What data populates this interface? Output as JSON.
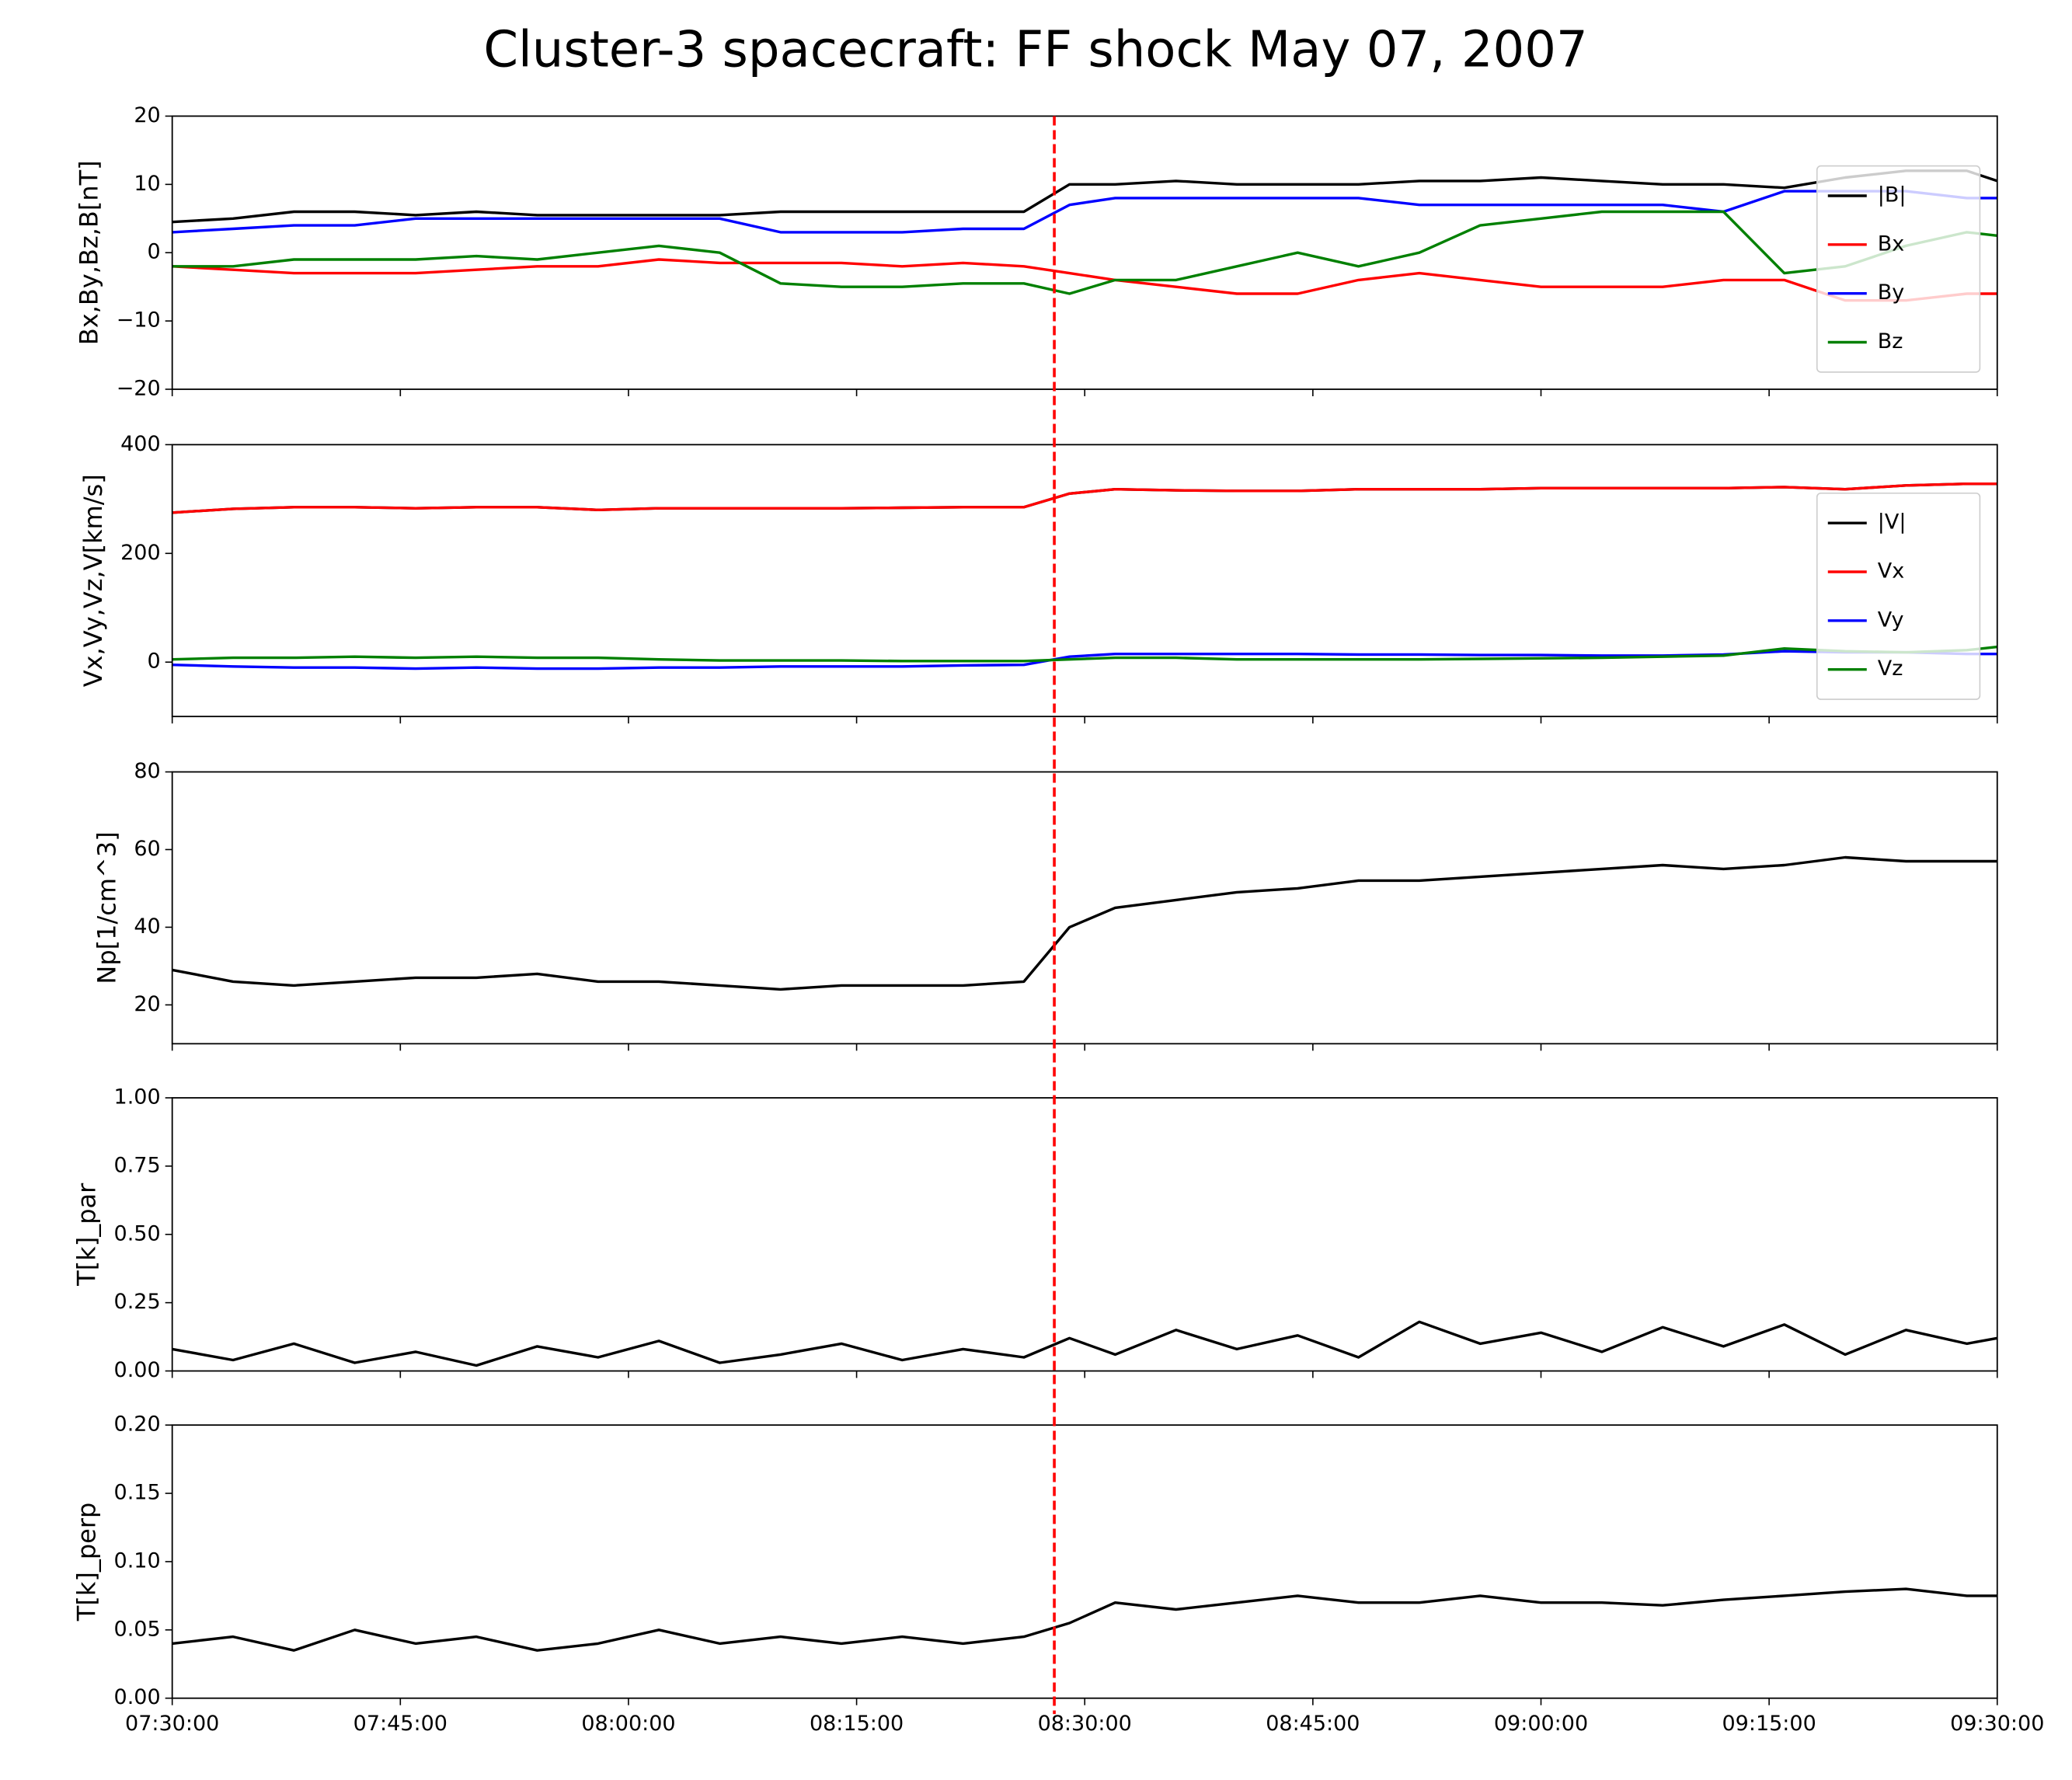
{
  "title": "Cluster-3 spacecraft: FF shock May 07, 2007",
  "vline": {
    "x": "08:28:00",
    "color": "#ff0000"
  },
  "chart_data": [
    {
      "type": "line",
      "ylabel": "Bx,By,Bz,B[nT]",
      "legend": "lower right",
      "x": [
        "07:30:00",
        "07:34:00",
        "07:38:00",
        "07:42:00",
        "07:46:00",
        "07:50:00",
        "07:54:00",
        "07:58:00",
        "08:02:00",
        "08:06:00",
        "08:10:00",
        "08:14:00",
        "08:18:00",
        "08:22:00",
        "08:26:00",
        "08:29:00",
        "08:32:00",
        "08:36:00",
        "08:40:00",
        "08:44:00",
        "08:48:00",
        "08:52:00",
        "08:56:00",
        "09:00:00",
        "09:04:00",
        "09:08:00",
        "09:12:00",
        "09:16:00",
        "09:20:00",
        "09:24:00",
        "09:28:00",
        "09:30:00"
      ],
      "xlim": [
        "07:30:00",
        "09:30:00"
      ],
      "ylim": [
        -20,
        20
      ],
      "yticks": [
        {
          "value": -20,
          "label": "−20"
        },
        {
          "value": -10,
          "label": "−10"
        },
        0,
        10,
        20
      ],
      "series": [
        {
          "name": "|B|",
          "color": "#000000",
          "values": [
            4.5,
            5,
            6,
            6,
            5.5,
            6,
            5.5,
            5.5,
            5.5,
            5.5,
            6,
            6,
            6,
            6,
            6,
            10,
            10,
            10.5,
            10,
            10,
            10,
            10.5,
            10.5,
            11,
            10.5,
            10,
            10,
            9.5,
            11,
            12,
            12,
            10.5
          ]
        },
        {
          "name": "Bx",
          "color": "#ff0000",
          "values": [
            -2,
            -2.5,
            -3,
            -3,
            -3,
            -2.5,
            -2,
            -2,
            -1,
            -1.5,
            -1.5,
            -1.5,
            -2,
            -1.5,
            -2,
            -3,
            -4,
            -5,
            -6,
            -6,
            -4,
            -3,
            -4,
            -5,
            -5,
            -5,
            -4,
            -4,
            -7,
            -7,
            -6,
            -6
          ]
        },
        {
          "name": "By",
          "color": "#0000ff",
          "values": [
            3,
            3.5,
            4,
            4,
            5,
            5,
            5,
            5,
            5,
            5,
            3,
            3,
            3,
            3.5,
            3.5,
            7,
            8,
            8,
            8,
            8,
            8,
            7,
            7,
            7,
            7,
            7,
            6,
            9,
            9,
            9,
            8,
            8
          ]
        },
        {
          "name": "Bz",
          "color": "#008000",
          "values": [
            -2,
            -2,
            -1,
            -1,
            -1,
            -0.5,
            -1,
            0,
            1,
            0,
            -4.5,
            -5,
            -5,
            -4.5,
            -4.5,
            -6,
            -4,
            -4,
            -2,
            0,
            -2,
            0,
            4,
            5,
            6,
            6,
            6,
            -3,
            -2,
            1,
            3,
            2.5
          ]
        }
      ]
    },
    {
      "type": "line",
      "ylabel": "Vx,Vy,Vz,V[km/s]",
      "legend": "lower right",
      "x": [
        "07:30:00",
        "07:34:00",
        "07:38:00",
        "07:42:00",
        "07:46:00",
        "07:50:00",
        "07:54:00",
        "07:58:00",
        "08:02:00",
        "08:06:00",
        "08:10:00",
        "08:14:00",
        "08:18:00",
        "08:22:00",
        "08:26:00",
        "08:29:00",
        "08:32:00",
        "08:36:00",
        "08:40:00",
        "08:44:00",
        "08:48:00",
        "08:52:00",
        "08:56:00",
        "09:00:00",
        "09:04:00",
        "09:08:00",
        "09:12:00",
        "09:16:00",
        "09:20:00",
        "09:24:00",
        "09:28:00",
        "09:30:00"
      ],
      "xlim": [
        "07:30:00",
        "09:30:00"
      ],
      "ylim": [
        -100,
        400
      ],
      "yticks": [
        0,
        200,
        400
      ],
      "series": [
        {
          "name": "|V|",
          "color": "#000000",
          "values": [
            275,
            282,
            285,
            285,
            283,
            285,
            285,
            280,
            283,
            283,
            283,
            283,
            284,
            285,
            285,
            310,
            318,
            316,
            315,
            315,
            318,
            318,
            318,
            320,
            320,
            320,
            320,
            322,
            318,
            325,
            328,
            328
          ]
        },
        {
          "name": "Vx",
          "color": "#ff0000",
          "values": [
            275,
            282,
            285,
            285,
            283,
            285,
            285,
            280,
            283,
            283,
            283,
            283,
            284,
            285,
            285,
            310,
            318,
            316,
            315,
            315,
            318,
            318,
            318,
            320,
            320,
            320,
            320,
            322,
            318,
            325,
            328,
            328
          ]
        },
        {
          "name": "Vy",
          "color": "#0000ff",
          "values": [
            -5,
            -8,
            -10,
            -10,
            -12,
            -10,
            -12,
            -12,
            -10,
            -10,
            -8,
            -8,
            -8,
            -6,
            -5,
            10,
            15,
            15,
            15,
            15,
            14,
            14,
            13,
            13,
            12,
            12,
            14,
            20,
            18,
            18,
            15,
            15
          ]
        },
        {
          "name": "Vz",
          "color": "#008000",
          "values": [
            5,
            8,
            8,
            10,
            8,
            10,
            8,
            8,
            5,
            3,
            3,
            3,
            2,
            2,
            2,
            5,
            8,
            8,
            5,
            5,
            5,
            5,
            6,
            7,
            8,
            10,
            12,
            25,
            20,
            18,
            22,
            28
          ]
        }
      ]
    },
    {
      "type": "line",
      "ylabel": "Np[1/cm^3]",
      "x": [
        "07:30:00",
        "07:34:00",
        "07:38:00",
        "07:42:00",
        "07:46:00",
        "07:50:00",
        "07:54:00",
        "07:58:00",
        "08:02:00",
        "08:06:00",
        "08:10:00",
        "08:14:00",
        "08:18:00",
        "08:22:00",
        "08:26:00",
        "08:29:00",
        "08:32:00",
        "08:36:00",
        "08:40:00",
        "08:44:00",
        "08:48:00",
        "08:52:00",
        "08:56:00",
        "09:00:00",
        "09:04:00",
        "09:08:00",
        "09:12:00",
        "09:16:00",
        "09:20:00",
        "09:24:00",
        "09:28:00",
        "09:30:00"
      ],
      "xlim": [
        "07:30:00",
        "09:30:00"
      ],
      "ylim": [
        10,
        80
      ],
      "yticks": [
        20,
        40,
        60,
        80
      ],
      "color": "#000000",
      "values": [
        29,
        26,
        25,
        26,
        27,
        27,
        28,
        26,
        26,
        25,
        24,
        25,
        25,
        25,
        26,
        40,
        45,
        47,
        49,
        50,
        52,
        52,
        53,
        54,
        55,
        56,
        55,
        56,
        58,
        57,
        57,
        57
      ]
    },
    {
      "type": "line",
      "ylabel": "T[k]_par",
      "x": [
        "07:30:00",
        "07:34:00",
        "07:38:00",
        "07:42:00",
        "07:46:00",
        "07:50:00",
        "07:54:00",
        "07:58:00",
        "08:02:00",
        "08:06:00",
        "08:10:00",
        "08:14:00",
        "08:18:00",
        "08:22:00",
        "08:26:00",
        "08:29:00",
        "08:32:00",
        "08:36:00",
        "08:40:00",
        "08:44:00",
        "08:48:00",
        "08:52:00",
        "08:56:00",
        "09:00:00",
        "09:04:00",
        "09:08:00",
        "09:12:00",
        "09:16:00",
        "09:20:00",
        "09:24:00",
        "09:28:00",
        "09:30:00"
      ],
      "xlim": [
        "07:30:00",
        "09:30:00"
      ],
      "ylim": [
        0,
        1
      ],
      "yticks": [
        {
          "value": 0,
          "label": "0.00"
        },
        {
          "value": 0.25,
          "label": "0.25"
        },
        {
          "value": 0.5,
          "label": "0.50"
        },
        {
          "value": 0.75,
          "label": "0.75"
        },
        {
          "value": 1,
          "label": "1.00"
        }
      ],
      "color": "#000000",
      "values": [
        0.08,
        0.04,
        0.1,
        0.03,
        0.07,
        0.02,
        0.09,
        0.05,
        0.11,
        0.03,
        0.06,
        0.1,
        0.04,
        0.08,
        0.05,
        0.12,
        0.06,
        0.15,
        0.08,
        0.13,
        0.05,
        0.18,
        0.1,
        0.14,
        0.07,
        0.16,
        0.09,
        0.17,
        0.06,
        0.15,
        0.1,
        0.12
      ]
    },
    {
      "type": "line",
      "ylabel": "T[k]_perp",
      "x": [
        "07:30:00",
        "07:34:00",
        "07:38:00",
        "07:42:00",
        "07:46:00",
        "07:50:00",
        "07:54:00",
        "07:58:00",
        "08:02:00",
        "08:06:00",
        "08:10:00",
        "08:14:00",
        "08:18:00",
        "08:22:00",
        "08:26:00",
        "08:29:00",
        "08:32:00",
        "08:36:00",
        "08:40:00",
        "08:44:00",
        "08:48:00",
        "08:52:00",
        "08:56:00",
        "09:00:00",
        "09:04:00",
        "09:08:00",
        "09:12:00",
        "09:16:00",
        "09:20:00",
        "09:24:00",
        "09:28:00",
        "09:30:00"
      ],
      "xlim": [
        "07:30:00",
        "09:30:00"
      ],
      "xticks": [
        "07:30:00",
        "07:45:00",
        "08:00:00",
        "08:15:00",
        "08:30:00",
        "08:45:00",
        "09:00:00",
        "09:15:00",
        "09:30:00"
      ],
      "ylim": [
        0,
        0.2
      ],
      "yticks": [
        {
          "value": 0,
          "label": "0.00"
        },
        {
          "value": 0.05,
          "label": "0.05"
        },
        {
          "value": 0.1,
          "label": "0.10"
        },
        {
          "value": 0.15,
          "label": "0.15"
        },
        {
          "value": 0.2,
          "label": "0.20"
        }
      ],
      "color": "#000000",
      "values": [
        0.04,
        0.045,
        0.035,
        0.05,
        0.04,
        0.045,
        0.035,
        0.04,
        0.05,
        0.04,
        0.045,
        0.04,
        0.045,
        0.04,
        0.045,
        0.055,
        0.07,
        0.065,
        0.07,
        0.075,
        0.07,
        0.07,
        0.075,
        0.07,
        0.07,
        0.068,
        0.072,
        0.075,
        0.078,
        0.08,
        0.075,
        0.075
      ]
    }
  ]
}
